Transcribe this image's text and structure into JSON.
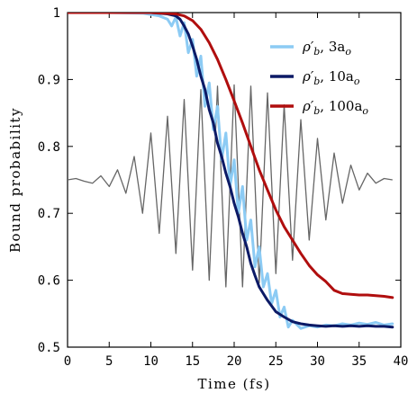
{
  "chart_data": {
    "type": "line",
    "xlabel": "Time (fs)",
    "ylabel": "Bound probability",
    "xlim": [
      0,
      40
    ],
    "ylim": [
      0.5,
      1.0
    ],
    "xticks": [
      0,
      5,
      10,
      15,
      20,
      25,
      30,
      35,
      40
    ],
    "yticks": [
      0.5,
      0.6,
      0.7,
      0.8,
      0.9,
      1.0
    ],
    "ytick_labels": [
      "0.5",
      "0.6",
      "0.7",
      "0.8",
      "0.9",
      "1"
    ],
    "grid": false,
    "legend_position": "top-right",
    "field_trace": {
      "description_color": "#666666",
      "x": [
        0,
        1,
        2,
        3,
        4,
        5,
        6,
        7,
        8,
        9,
        10,
        11,
        12,
        13,
        14,
        15,
        16,
        17,
        18,
        19,
        20,
        21,
        22,
        23,
        24,
        25,
        26,
        27,
        28,
        29,
        30,
        31,
        32,
        33,
        34,
        35,
        36,
        37,
        38,
        39
      ],
      "y": [
        0.75,
        0.752,
        0.748,
        0.745,
        0.756,
        0.74,
        0.765,
        0.73,
        0.785,
        0.7,
        0.82,
        0.67,
        0.845,
        0.64,
        0.87,
        0.615,
        0.885,
        0.6,
        0.89,
        0.59,
        0.892,
        0.59,
        0.89,
        0.596,
        0.88,
        0.61,
        0.862,
        0.63,
        0.84,
        0.66,
        0.812,
        0.69,
        0.79,
        0.715,
        0.772,
        0.735,
        0.76,
        0.745,
        0.752,
        0.75
      ]
    },
    "series": [
      {
        "name": "ρ′b, 3ao",
        "legend_main": "ρ′",
        "legend_sub": "b",
        "legend_rest": ", 3a",
        "legend_sub2": "o",
        "color": "#8ccbf4",
        "x": [
          0,
          5,
          9,
          10,
          11,
          12,
          12.5,
          13,
          13.5,
          14,
          14.5,
          15,
          15.5,
          16,
          16.5,
          17,
          17.5,
          18,
          18.5,
          19,
          19.5,
          20,
          20.5,
          21,
          21.5,
          22,
          22.5,
          23,
          23.5,
          24,
          24.5,
          25,
          25.5,
          26,
          26.5,
          27,
          28,
          29,
          30,
          31,
          32,
          33,
          34,
          35,
          36,
          37,
          38,
          39
        ],
        "y": [
          1.0,
          1.0,
          0.999,
          0.997,
          0.995,
          0.99,
          0.98,
          0.993,
          0.965,
          0.985,
          0.94,
          0.96,
          0.905,
          0.935,
          0.86,
          0.895,
          0.825,
          0.86,
          0.78,
          0.82,
          0.74,
          0.78,
          0.7,
          0.74,
          0.66,
          0.69,
          0.62,
          0.65,
          0.59,
          0.61,
          0.565,
          0.585,
          0.545,
          0.56,
          0.53,
          0.54,
          0.528,
          0.532,
          0.53,
          0.533,
          0.532,
          0.535,
          0.533,
          0.536,
          0.534,
          0.537,
          0.533,
          0.535
        ]
      },
      {
        "name": "ρ′b, 10ao",
        "legend_main": "ρ′",
        "legend_sub": "b",
        "legend_rest": ", 10a",
        "legend_sub2": "o",
        "color": "#0c1a66",
        "x": [
          0,
          5,
          10,
          11,
          12,
          13,
          13.5,
          14,
          14.5,
          15,
          15.5,
          16,
          16.5,
          17,
          17.5,
          18,
          18.5,
          19,
          19.5,
          20,
          20.5,
          21,
          21.5,
          22,
          22.5,
          23,
          23.5,
          24,
          25,
          26,
          27,
          28,
          29,
          30,
          31,
          32,
          33,
          34,
          35,
          36,
          37,
          38,
          39
        ],
        "y": [
          1.0,
          1.0,
          1.0,
          0.999,
          0.998,
          0.995,
          0.99,
          0.98,
          0.968,
          0.95,
          0.93,
          0.905,
          0.885,
          0.855,
          0.835,
          0.805,
          0.785,
          0.76,
          0.74,
          0.715,
          0.695,
          0.67,
          0.65,
          0.625,
          0.607,
          0.59,
          0.58,
          0.57,
          0.553,
          0.545,
          0.538,
          0.535,
          0.533,
          0.532,
          0.531,
          0.532,
          0.531,
          0.532,
          0.531,
          0.532,
          0.531,
          0.531,
          0.53
        ]
      },
      {
        "name": "ρ′b, 100ao",
        "legend_main": "ρ′",
        "legend_sub": "b",
        "legend_rest": ", 100a",
        "legend_sub2": "o",
        "color": "#b00e0e",
        "x": [
          0,
          5,
          10,
          13,
          14,
          15,
          16,
          17,
          18,
          19,
          20,
          21,
          22,
          23,
          24,
          25,
          26,
          27,
          28,
          29,
          30,
          31,
          32,
          33,
          34,
          35,
          36,
          37,
          38,
          39
        ],
        "y": [
          1.0,
          1.0,
          1.0,
          0.998,
          0.995,
          0.988,
          0.975,
          0.955,
          0.93,
          0.9,
          0.868,
          0.835,
          0.8,
          0.765,
          0.735,
          0.705,
          0.68,
          0.66,
          0.64,
          0.622,
          0.608,
          0.598,
          0.585,
          0.58,
          0.579,
          0.578,
          0.578,
          0.577,
          0.576,
          0.574
        ]
      }
    ]
  }
}
